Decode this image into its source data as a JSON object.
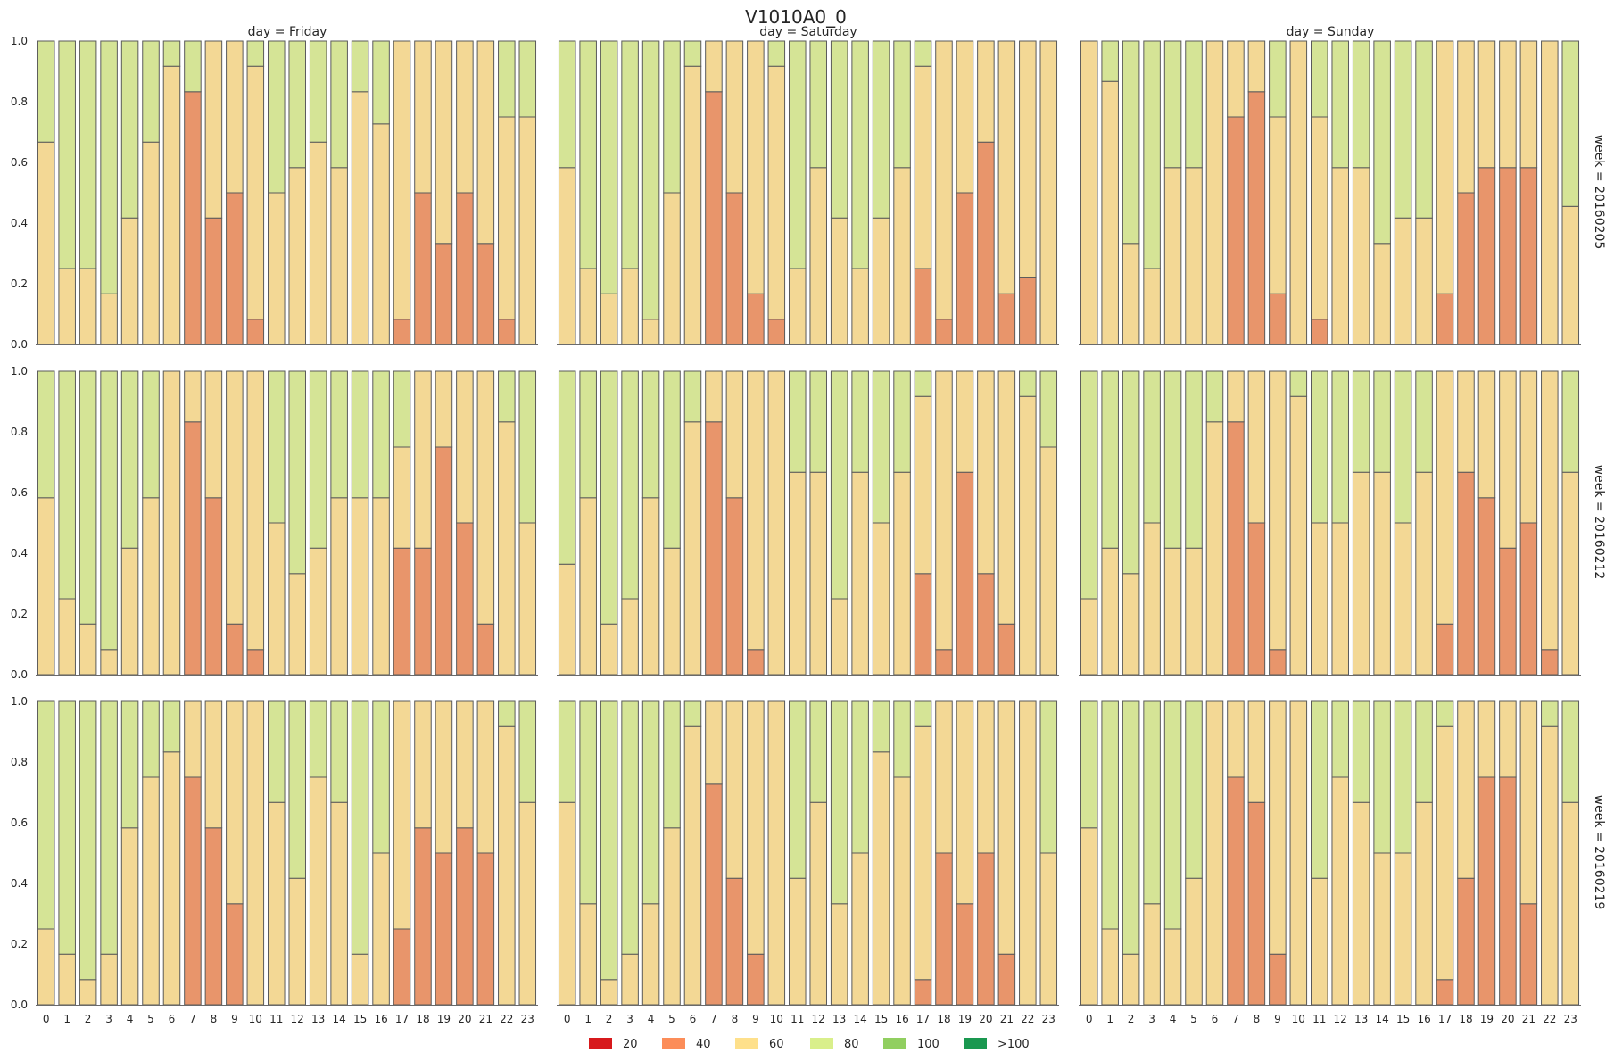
{
  "chart_data": {
    "type": "bar",
    "stacked": true,
    "title": "V1010A0_0",
    "x": [
      "0",
      "1",
      "2",
      "3",
      "4",
      "5",
      "6",
      "7",
      "8",
      "9",
      "10",
      "11",
      "12",
      "13",
      "14",
      "15",
      "16",
      "17",
      "18",
      "19",
      "20",
      "21",
      "22",
      "23"
    ],
    "ylim": [
      0,
      1.0
    ],
    "yticks": [
      "0.0",
      "0.2",
      "0.4",
      "0.6",
      "0.8",
      "1.0"
    ],
    "columns": [
      "day = Friday",
      "day = Saturday",
      "day = Sunday"
    ],
    "rows": [
      "week = 20160205",
      "week = 20160212",
      "week = 20160219"
    ],
    "legend": {
      "position": "bottom-center",
      "items": [
        {
          "label": "20",
          "color": "#d7191c"
        },
        {
          "label": "40",
          "color": "#fc8d59"
        },
        {
          "label": "60",
          "color": "#fee08b"
        },
        {
          "label": "80",
          "color": "#d9ef8b"
        },
        {
          "label": "100",
          "color": "#91cf60"
        },
        {
          "label": ">100",
          "color": "#1a9850"
        }
      ]
    },
    "panels": [
      {
        "week": "20160205",
        "day": "Friday",
        "l40": [
          0,
          0,
          0,
          0,
          0,
          0,
          0,
          0.833,
          0.417,
          0.5,
          0.083,
          0,
          0,
          0,
          0,
          0,
          0,
          0.083,
          0.5,
          0.333,
          0.5,
          0.333,
          0.083,
          0
        ],
        "l60": [
          0.667,
          0.25,
          0.25,
          0.167,
          0.417,
          0.667,
          0.917,
          0.833,
          1,
          1,
          0.917,
          0.5,
          0.583,
          0.667,
          0.583,
          0.833,
          0.727,
          1,
          1,
          1,
          1,
          1,
          0.75,
          0.75
        ]
      },
      {
        "week": "20160205",
        "day": "Saturday",
        "l40": [
          0,
          0,
          0,
          0,
          0,
          0,
          0,
          0.833,
          0.5,
          0.167,
          0.083,
          0,
          0,
          0,
          0,
          0,
          0,
          0.25,
          0.083,
          0.5,
          0.667,
          0.167,
          0.222,
          0
        ],
        "l60": [
          0.583,
          0.25,
          0.167,
          0.25,
          0.083,
          0.5,
          0.917,
          1,
          1,
          1,
          0.917,
          0.25,
          0.583,
          0.417,
          0.25,
          0.417,
          0.583,
          0.917,
          1,
          1,
          1,
          1,
          1,
          1
        ]
      },
      {
        "week": "20160205",
        "day": "Sunday",
        "l40": [
          0,
          0,
          0,
          0,
          0,
          0,
          0,
          0.75,
          0.833,
          0.167,
          0,
          0.083,
          0,
          0,
          0,
          0,
          0,
          0.167,
          0.5,
          0.583,
          0.583,
          0.583,
          0,
          0
        ],
        "l60": [
          1,
          0.867,
          0.333,
          0.25,
          0.583,
          0.583,
          1,
          1,
          1,
          0.75,
          1,
          0.75,
          0.583,
          0.583,
          0.333,
          0.417,
          0.417,
          1,
          1,
          1,
          1,
          1,
          1,
          0.455
        ]
      },
      {
        "week": "20160212",
        "day": "Friday",
        "l40": [
          0,
          0,
          0,
          0,
          0,
          0,
          0,
          0.833,
          0.583,
          0.167,
          0.083,
          0,
          0,
          0,
          0,
          0,
          0,
          0.417,
          0.417,
          0.75,
          0.5,
          0.167,
          0,
          0
        ],
        "l60": [
          0.583,
          0.25,
          0.167,
          0.083,
          0.417,
          0.583,
          1,
          1,
          1,
          1,
          1,
          0.5,
          0.333,
          0.417,
          0.583,
          0.583,
          0.583,
          0.75,
          1,
          1,
          1,
          1,
          0.833,
          0.5
        ]
      },
      {
        "week": "20160212",
        "day": "Saturday",
        "l40": [
          0,
          0,
          0,
          0,
          0,
          0,
          0,
          0.833,
          0.583,
          0.083,
          0,
          0,
          0,
          0,
          0,
          0,
          0,
          0.333,
          0.083,
          0.667,
          0.333,
          0.167,
          0,
          0
        ],
        "l60": [
          0.364,
          0.583,
          0.167,
          0.25,
          0.583,
          0.417,
          0.833,
          1,
          1,
          1,
          1,
          0.667,
          0.667,
          0.25,
          0.667,
          0.5,
          0.667,
          0.917,
          1,
          1,
          1,
          1,
          0.917,
          0.75
        ]
      },
      {
        "week": "20160212",
        "day": "Sunday",
        "l40": [
          0,
          0,
          0,
          0,
          0,
          0,
          0,
          0.833,
          0.5,
          0.083,
          0,
          0,
          0,
          0,
          0,
          0,
          0,
          0.167,
          0.667,
          0.583,
          0.417,
          0.5,
          0.083,
          0
        ],
        "l60": [
          0.25,
          0.417,
          0.333,
          0.5,
          0.417,
          0.417,
          0.833,
          1,
          1,
          1,
          0.917,
          0.5,
          0.5,
          0.667,
          0.667,
          0.5,
          0.667,
          1,
          1,
          1,
          1,
          1,
          1,
          0.667
        ]
      },
      {
        "week": "20160219",
        "day": "Friday",
        "l40": [
          0,
          0,
          0,
          0,
          0,
          0,
          0,
          0.75,
          0.583,
          0.333,
          0,
          0,
          0,
          0,
          0,
          0,
          0,
          0.25,
          0.583,
          0.5,
          0.583,
          0.5,
          0,
          0
        ],
        "l60": [
          0.25,
          0.167,
          0.083,
          0.167,
          0.583,
          0.75,
          0.833,
          1,
          1,
          1,
          1,
          0.667,
          0.417,
          0.75,
          0.667,
          0.167,
          0.5,
          1,
          1,
          1,
          1,
          1,
          0.917,
          0.667
        ]
      },
      {
        "week": "20160219",
        "day": "Saturday",
        "l40": [
          0,
          0,
          0,
          0,
          0,
          0,
          0,
          0.727,
          0.417,
          0.167,
          0,
          0,
          0,
          0,
          0,
          0,
          0,
          0.083,
          0.5,
          0.333,
          0.5,
          0.167,
          0,
          0
        ],
        "l60": [
          0.667,
          0.333,
          0.083,
          0.167,
          0.333,
          0.583,
          0.917,
          1,
          1,
          1,
          1,
          0.417,
          0.667,
          0.333,
          0.5,
          0.833,
          0.75,
          0.917,
          1,
          1,
          1,
          1,
          1,
          0.5
        ]
      },
      {
        "week": "20160219",
        "day": "Sunday",
        "l40": [
          0,
          0,
          0,
          0,
          0,
          0,
          0,
          0.75,
          0.667,
          0.167,
          0,
          0,
          0,
          0,
          0,
          0,
          0,
          0.083,
          0.417,
          0.75,
          0.75,
          0.333,
          0,
          0
        ],
        "l60": [
          0.583,
          0.25,
          0.167,
          0.333,
          0.25,
          0.417,
          1,
          1,
          1,
          1,
          1,
          0.417,
          0.75,
          0.667,
          0.5,
          0.5,
          0.667,
          0.917,
          1,
          1,
          1,
          1,
          0.917,
          0.667
        ]
      }
    ]
  }
}
